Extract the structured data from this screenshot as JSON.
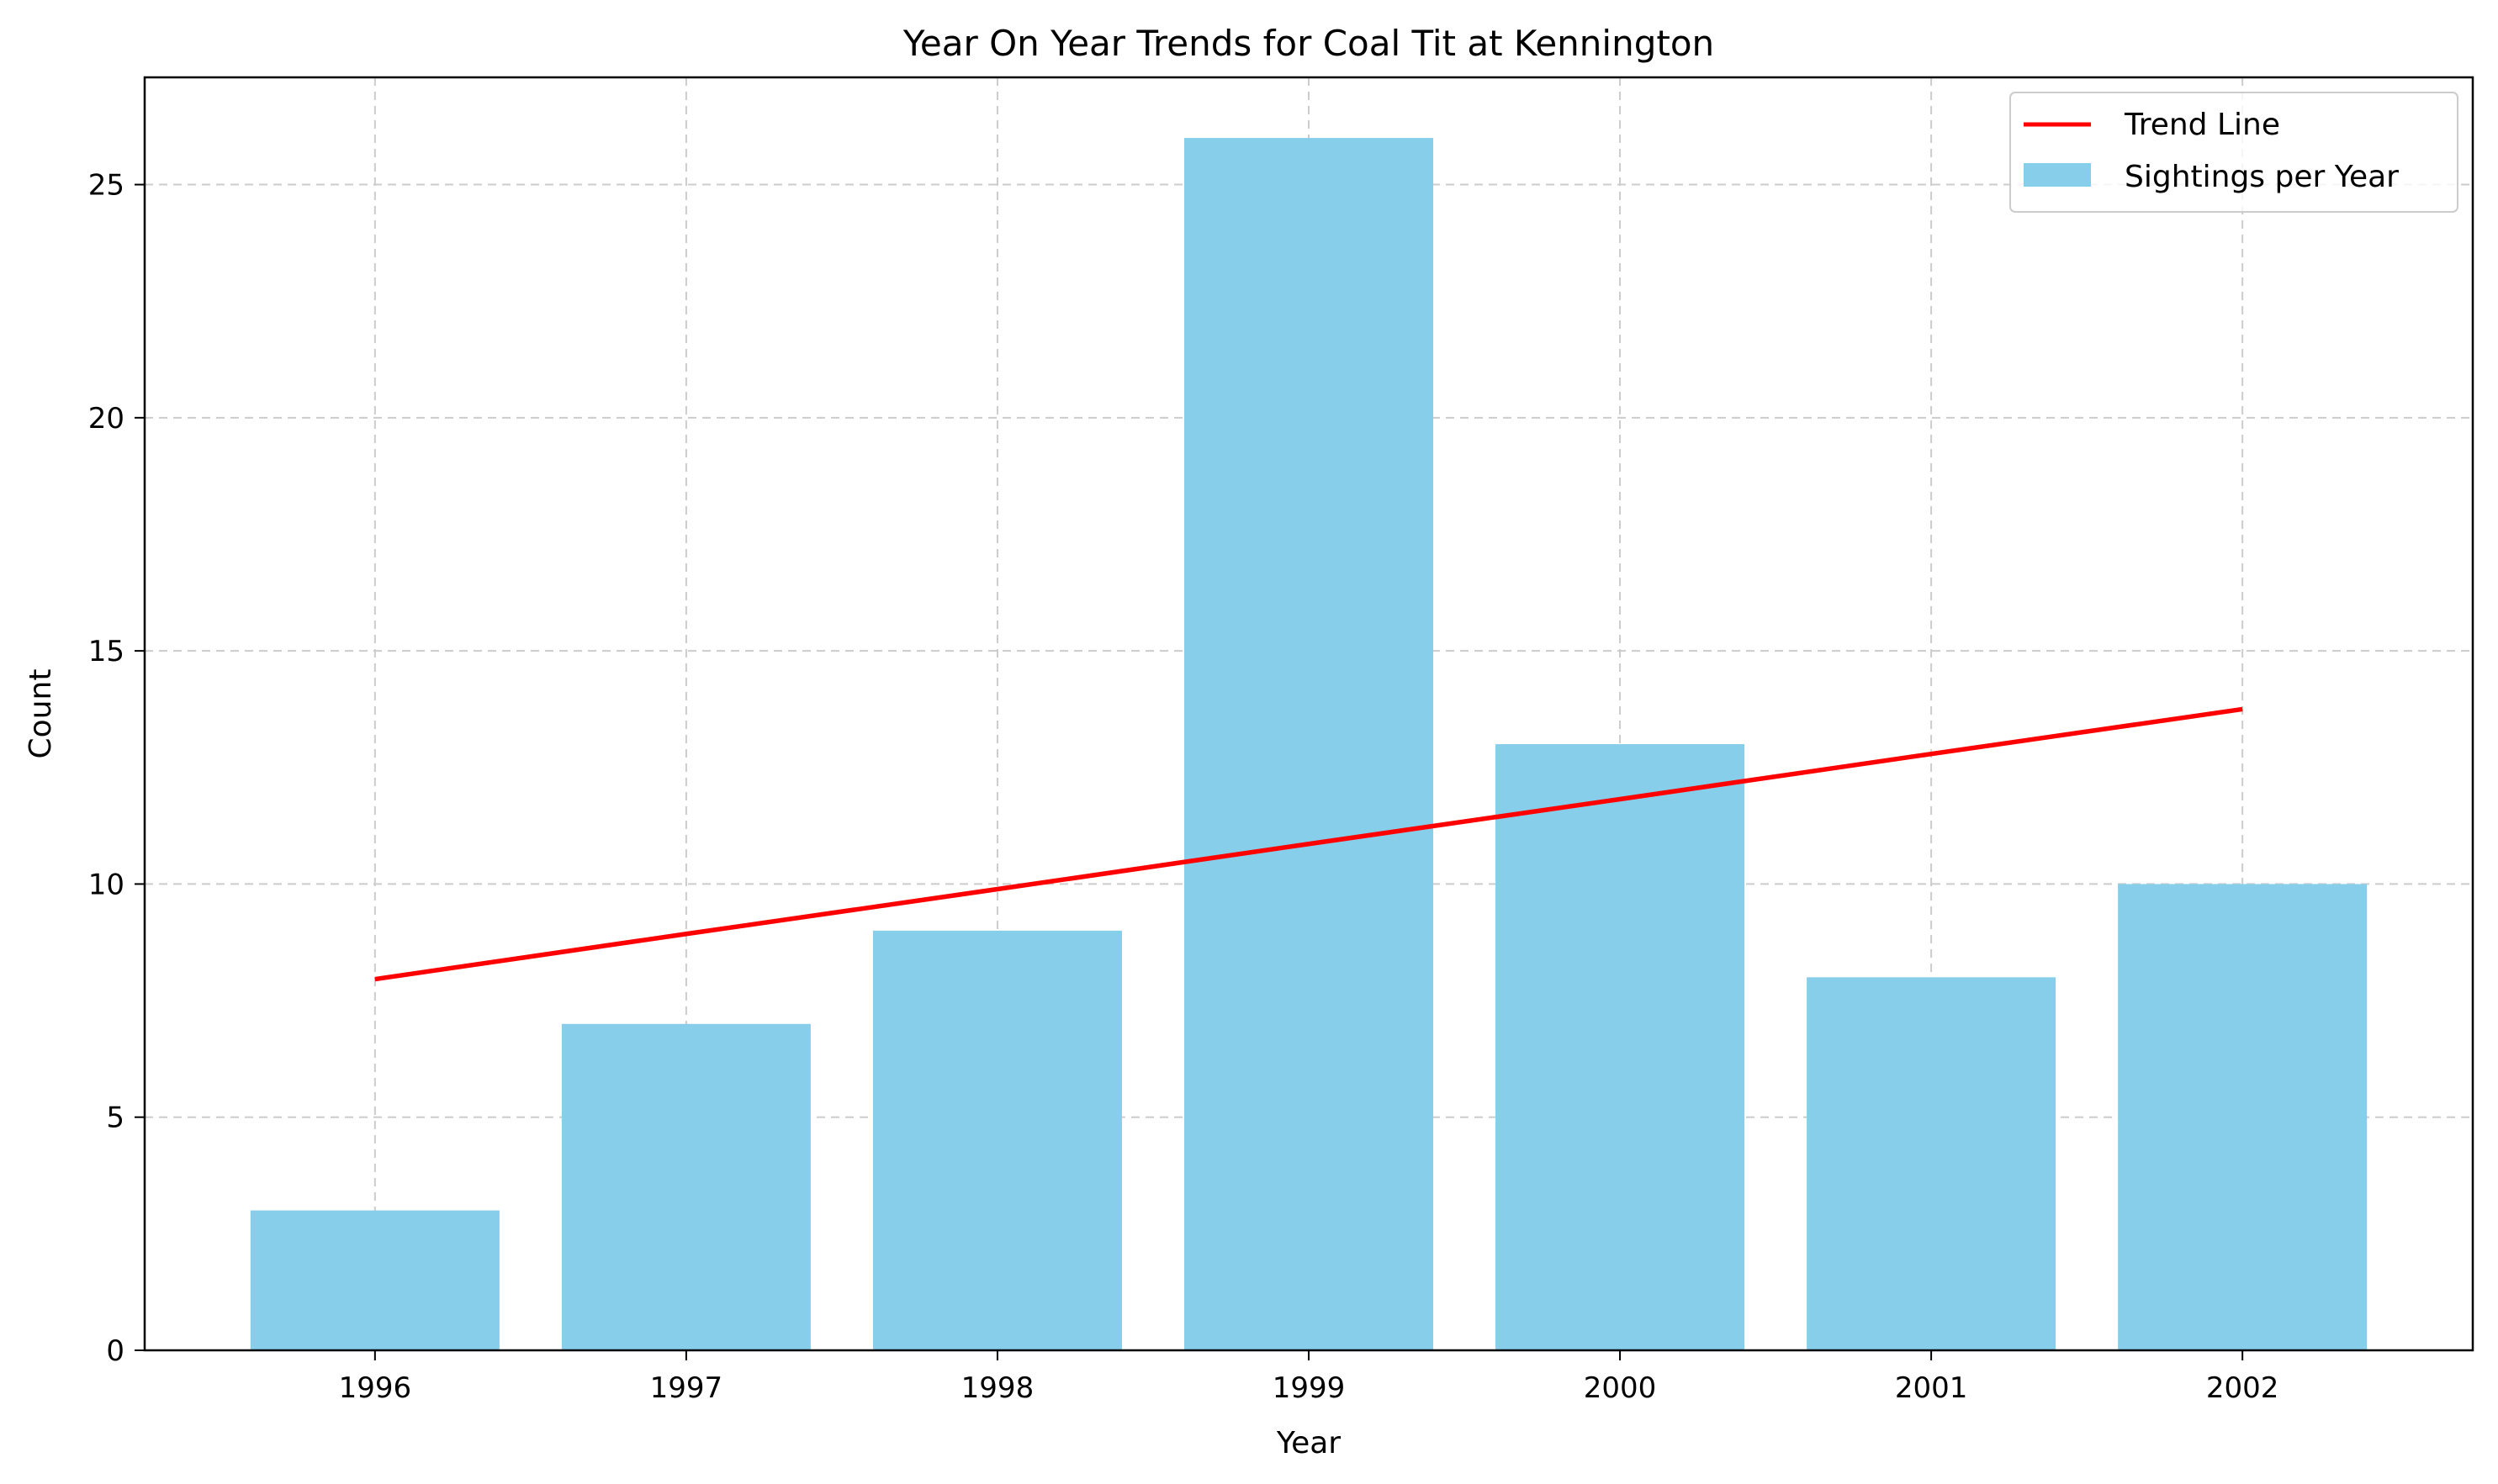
{
  "chart_data": {
    "type": "bar",
    "title": "Year On Year Trends for Coal Tit at Kennington",
    "xlabel": "Year",
    "ylabel": "Count",
    "categories": [
      "1996",
      "1997",
      "1998",
      "1999",
      "2000",
      "2001",
      "2002"
    ],
    "series": [
      {
        "name": "Sightings per Year",
        "type": "bar",
        "color": "#87CEEB",
        "values": [
          3,
          7,
          9,
          26,
          13,
          8,
          10
        ]
      },
      {
        "name": "Trend Line",
        "type": "line",
        "color": "#FF0000",
        "values": [
          7.96,
          8.93,
          9.89,
          10.86,
          11.82,
          12.79,
          13.75
        ]
      }
    ],
    "ylim": [
      0,
      27.3
    ],
    "yticks": [
      0,
      5,
      10,
      15,
      20,
      25
    ],
    "grid": true,
    "legend_position": "top-right"
  }
}
